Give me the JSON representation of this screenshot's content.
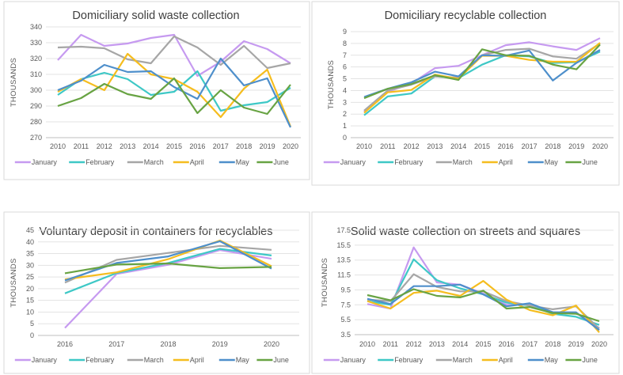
{
  "colors": {
    "January": "#c69af0",
    "February": "#3ec8c6",
    "March": "#a6a6a6",
    "April": "#f5bd1f",
    "May": "#4e8fcb",
    "June": "#68a343"
  },
  "chart_data": [
    {
      "type": "line",
      "title": "Domiciliary solid waste collection",
      "ylabel": "THOUSANDS",
      "xlabel": "",
      "ylim": [
        270,
        340
      ],
      "ystep": 10,
      "ydecimals": 0,
      "x": [
        "2010",
        "2011",
        "2012",
        "2013",
        "2014",
        "2015",
        "2016",
        "2017",
        "2018",
        "2019",
        "2020"
      ],
      "legend": "bottom",
      "grid": true,
      "series": [
        {
          "name": "January",
          "values": [
            319,
            335,
            328,
            329.5,
            333,
            335,
            309,
            318,
            331,
            326,
            317
          ]
        },
        {
          "name": "February",
          "values": [
            297,
            307,
            311,
            307,
            297,
            299,
            312,
            287,
            290.5,
            292.5,
            301.5
          ]
        },
        {
          "name": "March",
          "values": [
            327,
            327.5,
            326.5,
            319.5,
            317,
            334,
            327,
            316,
            328,
            314,
            317
          ]
        },
        {
          "name": "April",
          "values": [
            299,
            307,
            300,
            323,
            310,
            307,
            299,
            283,
            301,
            313,
            277
          ]
        },
        {
          "name": "May",
          "values": [
            300,
            306,
            316,
            311.5,
            312,
            302,
            294.5,
            320,
            303,
            307.5,
            276.5
          ]
        },
        {
          "name": "June",
          "values": [
            290,
            295,
            304,
            297.5,
            294.5,
            307.5,
            285.5,
            300,
            289,
            285,
            303.5
          ]
        }
      ]
    },
    {
      "type": "line",
      "title": "Domiciliary recyclable collection",
      "ylabel": "THOUSANDS",
      "xlabel": "",
      "ylim": [
        0,
        9
      ],
      "ystep": 1,
      "ydecimals": 0,
      "x": [
        "2010",
        "2011",
        "2012",
        "2013",
        "2014",
        "2015",
        "2016",
        "2017",
        "2018",
        "2019",
        "2020"
      ],
      "legend": "bottom",
      "grid": true,
      "series": [
        {
          "name": "January",
          "values": [
            2.2,
            3.9,
            4.6,
            5.9,
            6.1,
            7.0,
            7.85,
            8.1,
            7.75,
            7.45,
            8.45
          ]
        },
        {
          "name": "February",
          "values": [
            1.9,
            3.5,
            3.75,
            5.2,
            5.05,
            6.2,
            7.0,
            6.9,
            6.35,
            6.4,
            7.3
          ]
        },
        {
          "name": "March",
          "values": [
            2.3,
            4.0,
            4.5,
            5.2,
            5.1,
            7.0,
            7.45,
            7.55,
            6.9,
            6.7,
            8.0
          ]
        },
        {
          "name": "April",
          "values": [
            2.1,
            3.85,
            4.05,
            5.35,
            5.0,
            6.95,
            6.95,
            6.6,
            6.45,
            6.45,
            8.05
          ]
        },
        {
          "name": "May",
          "values": [
            3.45,
            4.15,
            4.7,
            5.6,
            5.2,
            7.0,
            6.95,
            7.4,
            4.85,
            6.35,
            7.45
          ]
        },
        {
          "name": "June",
          "values": [
            3.35,
            4.15,
            4.55,
            5.3,
            4.9,
            7.5,
            7.0,
            6.95,
            6.2,
            5.8,
            7.9
          ]
        }
      ]
    },
    {
      "type": "line",
      "title": "Voluntary deposit in containers for recyclables",
      "ylabel": "THOUSANDS",
      "xlabel": "",
      "ylim": [
        0,
        45
      ],
      "ystep": 5,
      "ydecimals": 0,
      "x": [
        "2016",
        "2017",
        "2018",
        "2019",
        "2020"
      ],
      "legend": "bottom",
      "grid": true,
      "series": [
        {
          "name": "January",
          "values": [
            3.2,
            26.3,
            30.2,
            36.5,
            32.8
          ]
        },
        {
          "name": "February",
          "values": [
            18,
            26.7,
            31,
            37,
            34.2
          ]
        },
        {
          "name": "March",
          "values": [
            22.6,
            32.3,
            35.3,
            38.3,
            36.6
          ]
        },
        {
          "name": "April",
          "values": [
            24,
            27,
            32.6,
            40.6,
            29.6
          ]
        },
        {
          "name": "May",
          "values": [
            23.5,
            31,
            33.8,
            40.3,
            28.6
          ]
        },
        {
          "name": "June",
          "values": [
            26.6,
            30.3,
            30.8,
            28.8,
            29.3
          ]
        }
      ]
    },
    {
      "type": "line",
      "title": "Solid waste collection on streets and squares",
      "ylabel": "THOUSANDS",
      "xlabel": "",
      "ylim": [
        3.5,
        17.5
      ],
      "ystep": 2,
      "ydecimals": 1,
      "x": [
        "2010",
        "2011",
        "2012",
        "2013",
        "2014",
        "2015",
        "2016",
        "2017",
        "2018",
        "2019",
        "2020"
      ],
      "legend": "bottom",
      "grid": true,
      "series": [
        {
          "name": "January",
          "values": [
            7.6,
            7.0,
            15.2,
            10.5,
            10.2,
            9.0,
            7.5,
            7.5,
            6.5,
            6.4,
            4.4
          ]
        },
        {
          "name": "February",
          "values": [
            8.0,
            7.5,
            13.6,
            10.8,
            9.7,
            8.9,
            7.8,
            7.4,
            6.3,
            5.9,
            4.8
          ]
        },
        {
          "name": "March",
          "values": [
            8.2,
            8.0,
            11.6,
            9.9,
            9.3,
            9.3,
            8.0,
            7.4,
            6.9,
            7.3,
            4.3
          ]
        },
        {
          "name": "April",
          "values": [
            8.0,
            7.0,
            9.1,
            9.4,
            8.7,
            10.7,
            8.2,
            6.8,
            6.1,
            7.4,
            3.8
          ]
        },
        {
          "name": "May",
          "values": [
            8.3,
            7.6,
            10.0,
            10.0,
            10.2,
            8.9,
            7.3,
            7.7,
            6.5,
            6.5,
            4.1
          ]
        },
        {
          "name": "June",
          "values": [
            8.8,
            8.1,
            9.6,
            8.7,
            8.5,
            9.4,
            7.0,
            7.2,
            6.4,
            6.3,
            5.3
          ]
        }
      ]
    }
  ]
}
